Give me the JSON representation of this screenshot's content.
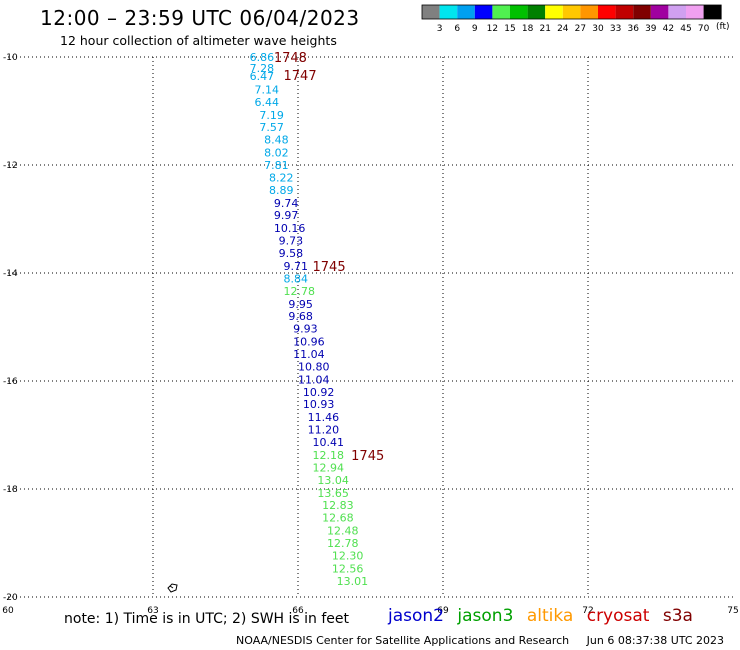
{
  "header": {
    "title": "12:00 – 23:59 UTC 06/04/2023",
    "subtitle": "12 hour collection of altimeter wave heights"
  },
  "colorbar": {
    "unit": "(ft)",
    "ticks": [
      "3",
      "6",
      "9",
      "12",
      "15",
      "18",
      "21",
      "24",
      "27",
      "30",
      "33",
      "36",
      "39",
      "42",
      "45",
      "70"
    ],
    "colors": [
      "#808080",
      "#00e5ee",
      "#00a0f0",
      "#0000ff",
      "#50f050",
      "#00c000",
      "#008000",
      "#ffff00",
      "#ffc800",
      "#ff9600",
      "#ff0000",
      "#c00000",
      "#800000",
      "#a000a0",
      "#d0a0f0",
      "#f0a0f0",
      "#000000"
    ]
  },
  "note": "note:  1) Time is in UTC;  2) SWH is in feet",
  "satellites": [
    {
      "label": "jason2",
      "color": "#0000cc"
    },
    {
      "label": "jason3",
      "color": "#00a000"
    },
    {
      "label": "altika",
      "color": "#ff9900"
    },
    {
      "label": "cryosat",
      "color": "#cc0000"
    },
    {
      "label": "s3a",
      "color": "#800000"
    }
  ],
  "footer": {
    "source": "NOAA/NESDIS Center for Satellite Applications and Research",
    "timestamp": "Jun  6 08:37:38 UTC 2023"
  },
  "chart_data": {
    "type": "scatter",
    "xlim": [
      60,
      75
    ],
    "ylim": [
      -20,
      -10
    ],
    "x_ticks": [
      60,
      63,
      66,
      69,
      72,
      75
    ],
    "y_ticks": [
      -10,
      -12,
      -14,
      -16,
      -18,
      -20
    ],
    "grid": true,
    "colors": {
      "lightblue": "#00a8e8",
      "blue": "#0000b0",
      "green": "#50e050",
      "time": "#800000"
    },
    "points": [
      {
        "lon": 65.0,
        "lat": -10.0,
        "label": "6.86",
        "c": "lightblue"
      },
      {
        "lon": 65.0,
        "lat": -10.2,
        "label": "7.28",
        "c": "lightblue"
      },
      {
        "lon": 65.0,
        "lat": -10.35,
        "label": "6.47",
        "c": "lightblue"
      },
      {
        "lon": 65.1,
        "lat": -10.6,
        "label": "7.14",
        "c": "lightblue"
      },
      {
        "lon": 65.1,
        "lat": -10.83,
        "label": "6.44",
        "c": "lightblue"
      },
      {
        "lon": 65.2,
        "lat": -11.07,
        "label": "7.19",
        "c": "lightblue"
      },
      {
        "lon": 65.2,
        "lat": -11.3,
        "label": "7.57",
        "c": "lightblue"
      },
      {
        "lon": 65.3,
        "lat": -11.53,
        "label": "8.48",
        "c": "lightblue"
      },
      {
        "lon": 65.3,
        "lat": -11.77,
        "label": "8.02",
        "c": "lightblue"
      },
      {
        "lon": 65.3,
        "lat": -12.0,
        "label": "7.81",
        "c": "lightblue"
      },
      {
        "lon": 65.4,
        "lat": -12.23,
        "label": "8.22",
        "c": "lightblue"
      },
      {
        "lon": 65.4,
        "lat": -12.46,
        "label": "8.89",
        "c": "lightblue"
      },
      {
        "lon": 65.5,
        "lat": -12.7,
        "label": "9.74",
        "c": "blue"
      },
      {
        "lon": 65.5,
        "lat": -12.93,
        "label": "9.97",
        "c": "blue"
      },
      {
        "lon": 65.5,
        "lat": -13.17,
        "label": "10.16",
        "c": "blue"
      },
      {
        "lon": 65.6,
        "lat": -13.4,
        "label": "9.73",
        "c": "blue"
      },
      {
        "lon": 65.6,
        "lat": -13.63,
        "label": "9.58",
        "c": "blue"
      },
      {
        "lon": 65.7,
        "lat": -13.87,
        "label": "9.71",
        "c": "blue"
      },
      {
        "lon": 65.7,
        "lat": -14.1,
        "label": "8.84",
        "c": "lightblue"
      },
      {
        "lon": 65.7,
        "lat": -14.33,
        "label": "12.78",
        "c": "green"
      },
      {
        "lon": 65.8,
        "lat": -14.57,
        "label": "9.95",
        "c": "blue"
      },
      {
        "lon": 65.8,
        "lat": -14.8,
        "label": "9.68",
        "c": "blue"
      },
      {
        "lon": 65.9,
        "lat": -15.03,
        "label": "9.93",
        "c": "blue"
      },
      {
        "lon": 65.9,
        "lat": -15.27,
        "label": "10.96",
        "c": "blue"
      },
      {
        "lon": 65.9,
        "lat": -15.5,
        "label": "11.04",
        "c": "blue"
      },
      {
        "lon": 66.0,
        "lat": -15.73,
        "label": "10.80",
        "c": "blue"
      },
      {
        "lon": 66.0,
        "lat": -15.97,
        "label": "11.04",
        "c": "blue"
      },
      {
        "lon": 66.1,
        "lat": -16.2,
        "label": "10.92",
        "c": "blue"
      },
      {
        "lon": 66.1,
        "lat": -16.43,
        "label": "10.93",
        "c": "blue"
      },
      {
        "lon": 66.2,
        "lat": -16.67,
        "label": "11.46",
        "c": "blue"
      },
      {
        "lon": 66.2,
        "lat": -16.9,
        "label": "11.20",
        "c": "blue"
      },
      {
        "lon": 66.3,
        "lat": -17.13,
        "label": "10.41",
        "c": "blue"
      },
      {
        "lon": 66.3,
        "lat": -17.37,
        "label": "12.18",
        "c": "green"
      },
      {
        "lon": 66.3,
        "lat": -17.6,
        "label": "12.94",
        "c": "green"
      },
      {
        "lon": 66.4,
        "lat": -17.83,
        "label": "13.04",
        "c": "green"
      },
      {
        "lon": 66.4,
        "lat": -18.07,
        "label": "13.65",
        "c": "green"
      },
      {
        "lon": 66.5,
        "lat": -18.3,
        "label": "12.83",
        "c": "green"
      },
      {
        "lon": 66.5,
        "lat": -18.53,
        "label": "12.68",
        "c": "green"
      },
      {
        "lon": 66.6,
        "lat": -18.77,
        "label": "12.48",
        "c": "green"
      },
      {
        "lon": 66.6,
        "lat": -19.0,
        "label": "12.78",
        "c": "green"
      },
      {
        "lon": 66.7,
        "lat": -19.23,
        "label": "12.30",
        "c": "green"
      },
      {
        "lon": 66.7,
        "lat": -19.47,
        "label": "12.56",
        "c": "green"
      },
      {
        "lon": 66.8,
        "lat": -19.7,
        "label": "13.01",
        "c": "green"
      }
    ],
    "time_labels": [
      {
        "lon": 65.5,
        "lat": -10.0,
        "label": "1748"
      },
      {
        "lon": 65.7,
        "lat": -10.33,
        "label": "1747"
      },
      {
        "lon": 66.3,
        "lat": -13.87,
        "label": "1745"
      },
      {
        "lon": 67.1,
        "lat": -17.37,
        "label": "1745"
      }
    ]
  }
}
